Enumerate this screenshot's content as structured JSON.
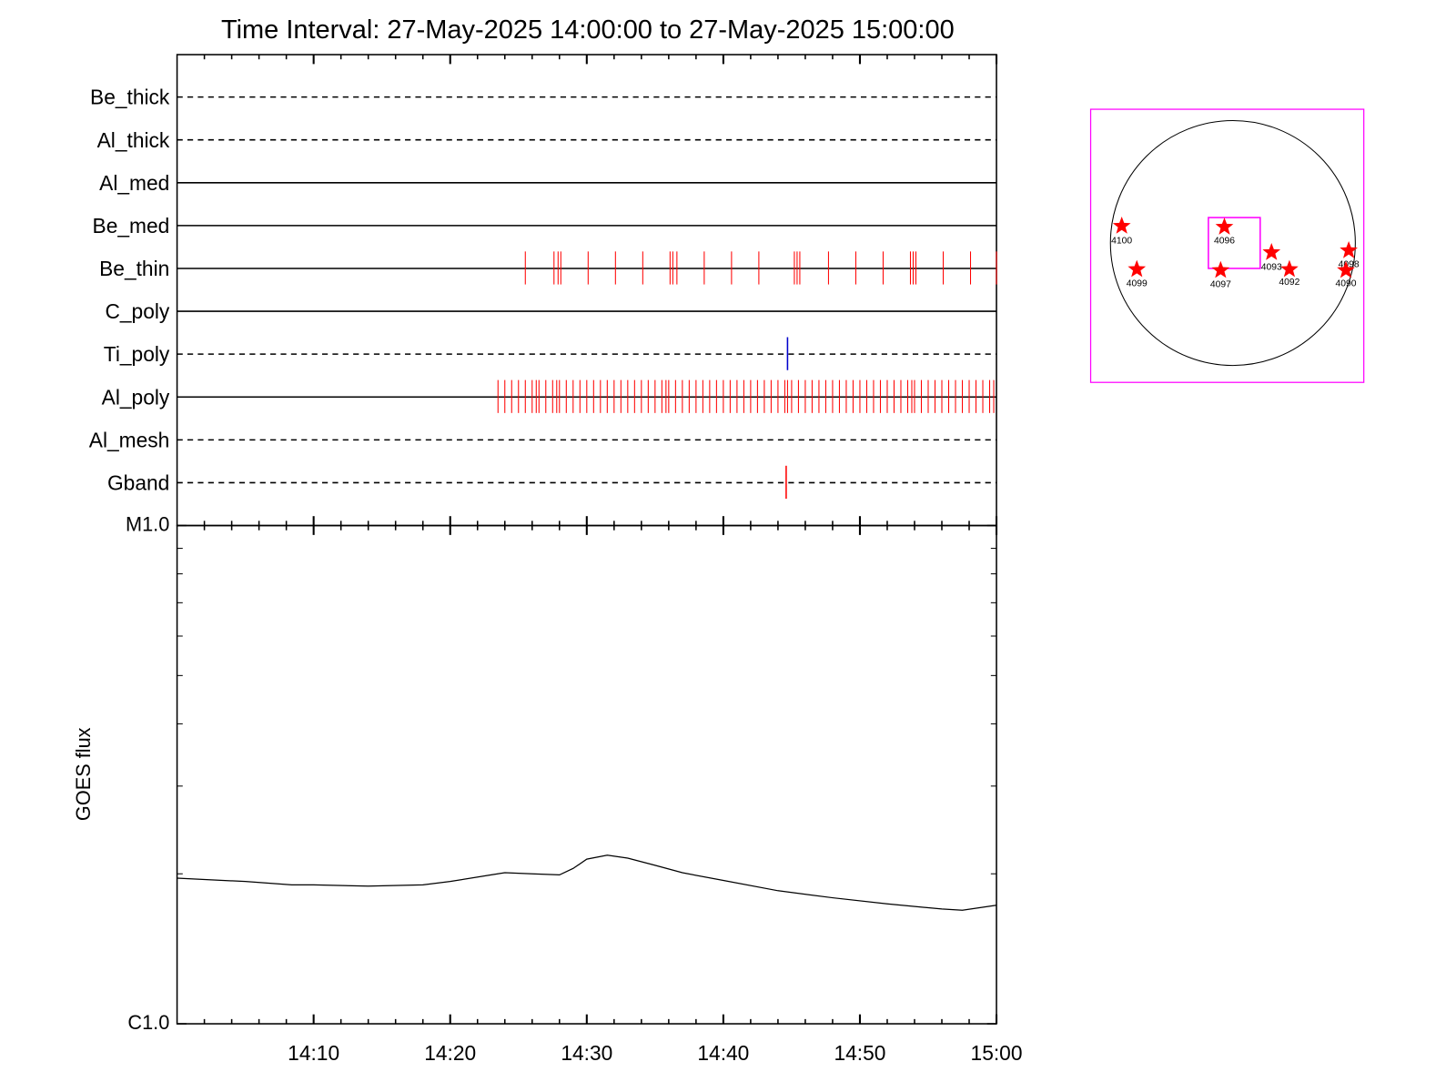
{
  "chart_data": [
    {
      "type": "event",
      "title": "Time Interval: 27-May-2025 14:00:00 to 27-May-2025 15:00:00",
      "channels": [
        {
          "name": "Be_thick",
          "line_style": "dashed",
          "color": "#ff0000",
          "events": []
        },
        {
          "name": "Al_thick",
          "line_style": "dashed",
          "color": "#ff0000",
          "events": []
        },
        {
          "name": "Al_med",
          "line_style": "solid",
          "color": "#ff0000",
          "events": []
        },
        {
          "name": "Be_med",
          "line_style": "solid",
          "color": "#ff0000",
          "events": []
        },
        {
          "name": "Be_thin",
          "line_style": "solid",
          "color": "#ff0000",
          "events": [
            25.5,
            27.6,
            27.9,
            28.1,
            30.1,
            32.1,
            34.1,
            36.1,
            36.3,
            36.6,
            38.6,
            40.6,
            42.6,
            45.2,
            45.4,
            45.6,
            47.7,
            49.7,
            51.7,
            53.7,
            53.9,
            54.1,
            56.1,
            58.1,
            60
          ]
        },
        {
          "name": "C_poly",
          "line_style": "solid",
          "color": "#ff0000",
          "events": []
        },
        {
          "name": "Ti_poly",
          "line_style": "dashed",
          "color": "#0000cc",
          "events": [
            44.7
          ]
        },
        {
          "name": "Al_poly",
          "line_style": "solid",
          "color": "#ff0000",
          "events": [
            23.5,
            24,
            24.5,
            25,
            25.5,
            26,
            26.3,
            26.5,
            27,
            27.5,
            27.8,
            28,
            28.5,
            29,
            29.5,
            30,
            30.5,
            31,
            31.5,
            32,
            32.5,
            33,
            33.5,
            34,
            34.5,
            35,
            35.5,
            35.8,
            36,
            36.5,
            37,
            37.5,
            38,
            38.5,
            39,
            39.5,
            40,
            40.5,
            41,
            41.5,
            42,
            42.5,
            43,
            43.5,
            44,
            44.5,
            44.7,
            45,
            45.5,
            46,
            46.5,
            47,
            47.5,
            48,
            48.5,
            49,
            49.5,
            50,
            50.5,
            51,
            51.5,
            52,
            52.5,
            53,
            53.5,
            53.8,
            54,
            54.5,
            55,
            55.5,
            56,
            56.5,
            57,
            57.5,
            58,
            58.5,
            59,
            59.5,
            59.8
          ]
        },
        {
          "name": "Al_mesh",
          "line_style": "dashed",
          "color": "#ff0000",
          "events": []
        },
        {
          "name": "Gband",
          "line_style": "dashed",
          "color": "#ff0000",
          "events": [
            44.6
          ]
        }
      ]
    },
    {
      "type": "line",
      "ylabel": "GOES flux",
      "log_scale": true,
      "color": "#000000",
      "x": [
        0,
        5,
        8.4,
        10,
        14,
        18,
        20,
        23,
        24,
        26,
        28,
        29,
        30,
        31.5,
        33,
        35,
        37,
        40,
        44,
        48,
        52,
        56,
        57.5,
        60
      ],
      "y": [
        1.96e-06,
        1.93e-06,
        1.9e-06,
        1.9e-06,
        1.89e-06,
        1.9e-06,
        1.93e-06,
        1.99e-06,
        2.01e-06,
        2e-06,
        1.99e-06,
        2.05e-06,
        2.14e-06,
        2.18e-06,
        2.15e-06,
        2.08e-06,
        2.01e-06,
        1.94e-06,
        1.85e-06,
        1.79e-06,
        1.74e-06,
        1.7e-06,
        1.69e-06,
        1.73e-06
      ],
      "xlim": [
        0,
        60
      ],
      "xticks": [
        {
          "value": 10,
          "label": "14:10"
        },
        {
          "value": 20,
          "label": "14:20"
        },
        {
          "value": 30,
          "label": "14:30"
        },
        {
          "value": 40,
          "label": "14:40"
        },
        {
          "value": 50,
          "label": "14:50"
        },
        {
          "value": 60,
          "label": "15:00"
        }
      ],
      "xminor_ticks": [
        2,
        4,
        6,
        8,
        12,
        14,
        16,
        18,
        22,
        24,
        26,
        28,
        32,
        34,
        36,
        38,
        42,
        44,
        46,
        48,
        52,
        54,
        56,
        58
      ],
      "ylim": [
        1e-06,
        1e-05
      ],
      "yticks": [
        {
          "value": 1e-06,
          "label": "C1.0"
        },
        {
          "value": 1e-05,
          "label": "M1.0"
        }
      ],
      "yminor_ticks": [
        2e-06,
        3e-06,
        4e-06,
        5e-06,
        6e-06,
        7e-06,
        8e-06,
        9e-06
      ]
    }
  ],
  "sun_map": {
    "regions": [
      "4100",
      "4099",
      "4096",
      "4097",
      "4093",
      "4092",
      "4098",
      "4090"
    ]
  }
}
